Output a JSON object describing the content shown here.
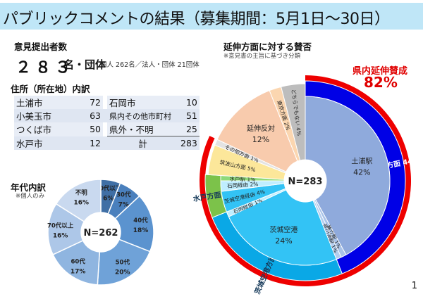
{
  "title": "パブリックコメントの結果（募集期間：5月1日～30日）",
  "submitters": {
    "heading": "意見提出者数",
    "total": "２８３",
    "unit": "名・団体",
    "detail": "個人 262名／法人・団体 21団体"
  },
  "address": {
    "heading": "住所（所在地）内訳",
    "left": [
      {
        "label": "土浦市",
        "value": "72"
      },
      {
        "label": "小美玉市",
        "value": "63"
      },
      {
        "label": "つくば市",
        "value": "50"
      },
      {
        "label": "水戸市",
        "value": "12"
      }
    ],
    "right": [
      {
        "label": "石岡市",
        "value": "10"
      },
      {
        "label": "県内その他市町村",
        "value": "51"
      },
      {
        "label": "県外・不明",
        "value": "25"
      },
      {
        "label": "計",
        "value": "283"
      }
    ]
  },
  "age": {
    "heading": "年代内訳",
    "note": "※個人のみ",
    "center": "N=262"
  },
  "direction": {
    "heading": "延伸方面に対する賛否",
    "note": "※意見書の主旨に基づき分類",
    "callout_label": "県内延伸賛成",
    "callout_value": "82%",
    "center": "N=283"
  },
  "page_number": "1",
  "chart_data": [
    {
      "type": "pie",
      "title": "年代内訳",
      "subtitle": "※個人のみ",
      "center_label": "N=262",
      "categories": [
        "20代以下",
        "30代",
        "40代",
        "50代",
        "60代",
        "70代以上",
        "不明"
      ],
      "values": [
        6,
        7,
        18,
        20,
        17,
        16,
        16
      ],
      "unit": "%",
      "colors": [
        "#3f6fa5",
        "#4a80bd",
        "#5b93cf",
        "#6fa2d8",
        "#8fb5e0",
        "#adc7e8",
        "#c9d9ef"
      ]
    },
    {
      "type": "pie",
      "title": "延伸方面に対する賛否",
      "subtitle": "※意見書の主旨に基づき分類",
      "center_label": "N=283",
      "annotation": "県内延伸賛成 82%",
      "outer_ring": {
        "categories": [
          "土浦方面",
          "茨城空港方面",
          "水戸方面",
          "筑波山方面",
          "その他方面",
          "延伸反対",
          "東京方面",
          "どちらでもない"
        ],
        "values": [
          44,
          25,
          7,
          5,
          1,
          12,
          2,
          4
        ],
        "unit": "%",
        "colors": [
          "#0000e6",
          "#0aa8e6",
          "#7cc24a",
          "#fce79a",
          "#e3e3e3",
          "#f8cbad",
          "#fbd6b0",
          "#bdbdbd"
        ]
      },
      "inner_ring": {
        "categories": [
          "土浦駅",
          "神立駅",
          "荒川沖駅",
          "茨城空港",
          "石岡経由",
          "茨城空港経由",
          "石岡経由",
          "水戸駅",
          "筑波山方面",
          "その他方面",
          "延伸反対",
          "東京方面",
          "どちらでもない"
        ],
        "values": [
          42,
          1,
          1,
          24,
          1,
          4,
          2,
          1,
          5,
          1,
          12,
          2,
          4
        ],
        "labels": [
          "土浦駅 42%",
          "神立駅 1%",
          "荒川沖駅 1%",
          "茨城空港 24%",
          "石岡経由 1%",
          "茨城空港経由 4%",
          "石岡経由 2%",
          "水戸駅 1%",
          "筑波山方面 5%",
          "その他方面 1%",
          "延伸反対 12%",
          "東京方面 2%",
          "どちらでもない 4%"
        ],
        "colors": [
          "#8faadc",
          "#a9c3e8",
          "#b4cdee",
          "#33c3f5",
          "#bfeeff",
          "#33c3f5",
          "#bfeeff",
          "#8ed97a",
          "#fce79a",
          "#e3e3e3",
          "#f8cbad",
          "#fbd6b0",
          "#bdbdbd"
        ]
      },
      "highlight_arc": {
        "label": "県内延伸賛成",
        "value": 82,
        "color": "#ee0000"
      }
    }
  ]
}
